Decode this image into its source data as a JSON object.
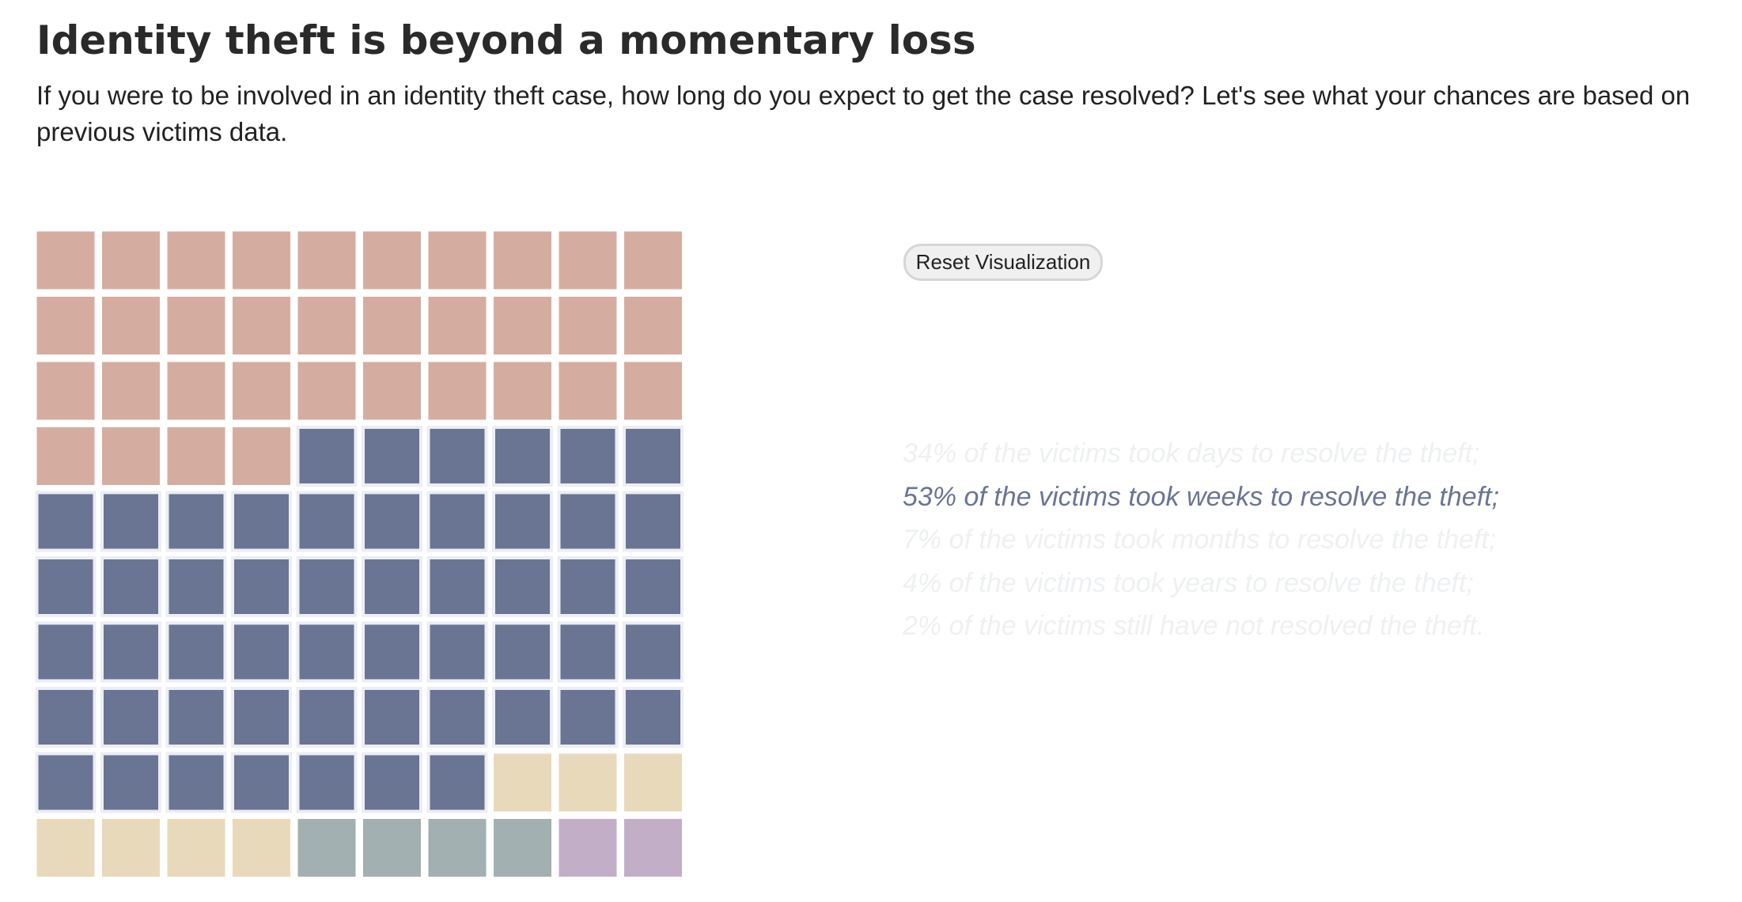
{
  "page": {
    "title": "Identity theft is beyond a momentary loss",
    "intro": "If you were to be involved in an identity theft case, how long do you expect to get the case resolved? Let's see what your chances are based on previous victims data."
  },
  "controls": {
    "reset_label": "Reset Visualization"
  },
  "chart_data": {
    "type": "waffle",
    "grid": {
      "rows": 10,
      "cols": 10
    },
    "unit": "%",
    "categories": [
      "days",
      "weeks",
      "months",
      "years",
      "not resolved"
    ],
    "values": [
      34,
      53,
      7,
      4,
      2
    ],
    "colors": [
      "#d5ada0",
      "#6a7594",
      "#e8d9bb",
      "#a2b0b1",
      "#c3aec8"
    ],
    "highlighted_category": "weeks",
    "highlight_color": "#6a7594",
    "dim_text_color": "#eef0f2",
    "highlight_tile_border": "#eceef4",
    "annotations": [
      "34% of the victims took days to resolve the theft;",
      "53% of the victims took weeks to resolve the theft;",
      "7% of the victims took months to resolve the theft;",
      "4% of the victims took years to resolve the theft;",
      "2% of the victims still have not resolved the theft."
    ]
  }
}
